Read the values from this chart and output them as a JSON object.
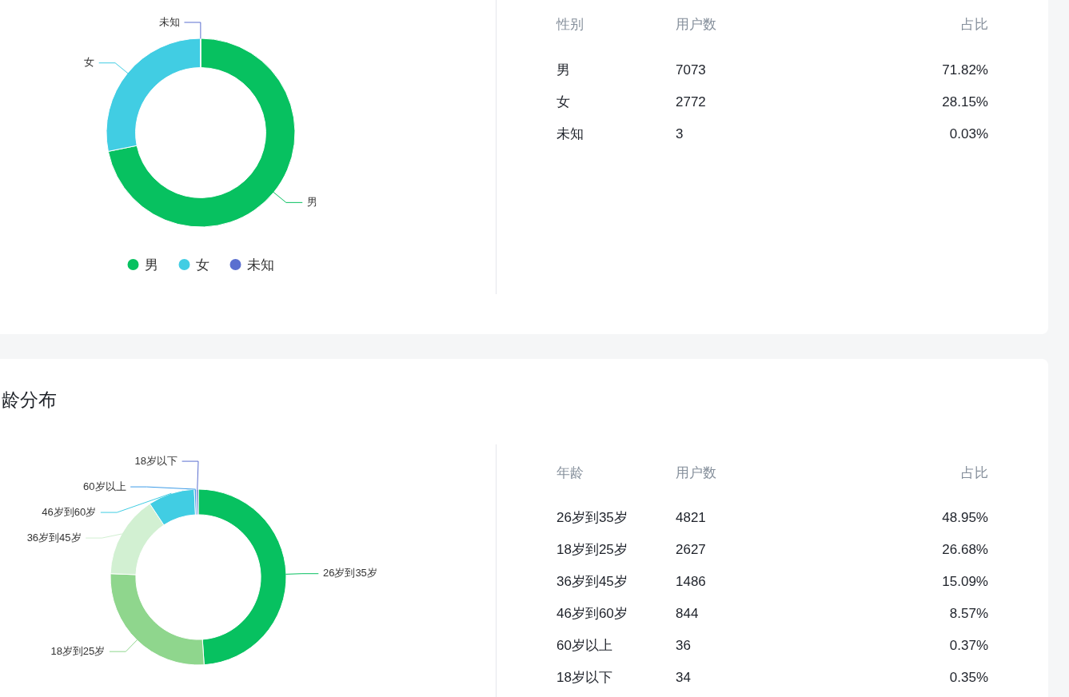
{
  "chart_data": [
    {
      "type": "donut",
      "categories": [
        "男",
        "女",
        "未知"
      ],
      "values": [
        71.82,
        28.15,
        0.03
      ],
      "colors": [
        "#07c160",
        "#41cde3",
        "#5b6fd0"
      ],
      "legend": "bottom"
    },
    {
      "type": "other",
      "annotations": [
        "性别",
        "用户数",
        "占比",
        "男",
        "7073",
        "71.82%",
        "女",
        "2772",
        "28.15%",
        "未知",
        "3",
        "0.03%"
      ]
    },
    {
      "type": "donut",
      "title": "龄分布",
      "categories": [
        "26岁到35岁",
        "18岁到25岁",
        "36岁到45岁",
        "46岁到60岁",
        "60岁以上",
        "18岁以下"
      ],
      "values": [
        48.95,
        26.68,
        15.09,
        8.57,
        0.37,
        0.35
      ],
      "colors": [
        "#07c160",
        "#8fd68d",
        "#d2f0d2",
        "#41cde3",
        "#3d9ce8",
        "#5b6fd0"
      ]
    },
    {
      "type": "other",
      "annotations": [
        "年龄",
        "用户数",
        "占比",
        "26岁到35岁",
        "4821",
        "48.95%",
        "18岁到25岁",
        "2627",
        "26.68%",
        "36岁到45岁",
        "1486",
        "15.09%",
        "46岁到60岁",
        "844",
        "8.57%",
        "60岁以上",
        "36",
        "0.37%",
        "18岁以下",
        "34",
        "0.35%"
      ]
    }
  ]
}
